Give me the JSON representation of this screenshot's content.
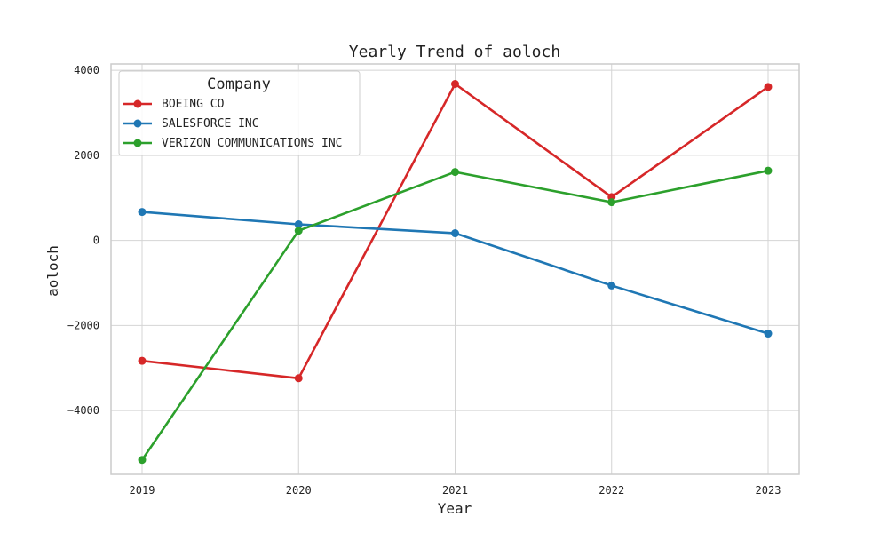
{
  "chart_data": {
    "type": "line",
    "title": "Yearly Trend of aoloch",
    "xlabel": "Year",
    "ylabel": "aoloch",
    "categories": [
      "2019",
      "2020",
      "2021",
      "2022",
      "2023"
    ],
    "ylim": [
      -5500,
      4150
    ],
    "yticks": [
      -4000,
      -2000,
      0,
      2000,
      4000
    ],
    "ytick_labels": [
      "−4000",
      "−2000",
      "0",
      "2000",
      "4000"
    ],
    "grid": true,
    "legend": {
      "title": "Company",
      "placement": "top-left"
    },
    "series": [
      {
        "name": "BOEING CO",
        "color": "#d62728",
        "values": [
          -2830,
          -3240,
          3680,
          1020,
          3610
        ]
      },
      {
        "name": "SALESFORCE INC",
        "color": "#1f77b4",
        "values": [
          670,
          380,
          170,
          -1060,
          -2190
        ]
      },
      {
        "name": "VERIZON COMMUNICATIONS INC",
        "color": "#2ca02c",
        "values": [
          -5160,
          230,
          1610,
          900,
          1640
        ]
      }
    ]
  }
}
